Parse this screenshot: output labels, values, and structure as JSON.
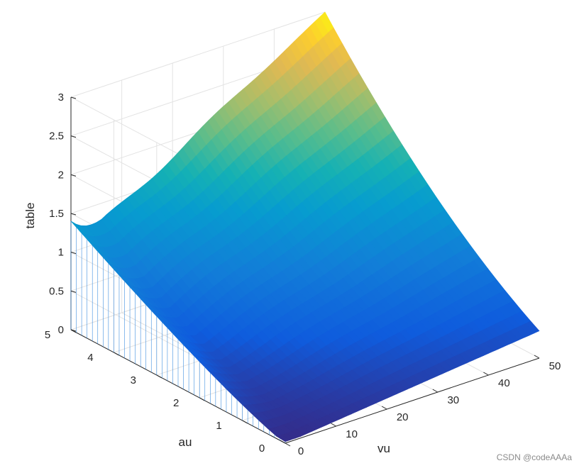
{
  "chart_data": {
    "type": "surface",
    "view": "3d-mesh",
    "colormap": "parula",
    "grid": true,
    "xlabel": "vu",
    "ylabel": "au",
    "zlabel": "table",
    "xlim": [
      0,
      50
    ],
    "ylim": [
      0,
      5
    ],
    "zlim": [
      0,
      3
    ],
    "xticks": [
      "0",
      "10",
      "20",
      "30",
      "40",
      "50"
    ],
    "yticks": [
      "0",
      "1",
      "2",
      "3",
      "4",
      "5"
    ],
    "zticks": [
      "0",
      "0.5",
      "1",
      "1.5",
      "2",
      "2.5",
      "3"
    ],
    "corner_values": [
      {
        "vu": 0,
        "au": 0,
        "table": 0.02
      },
      {
        "vu": 50,
        "au": 0,
        "table": 0.35
      },
      {
        "vu": 0,
        "au": 5,
        "table": 1.4
      },
      {
        "vu": 50,
        "au": 5,
        "table": 3.0
      }
    ]
  },
  "watermark": "CSDN @codeAAAa"
}
